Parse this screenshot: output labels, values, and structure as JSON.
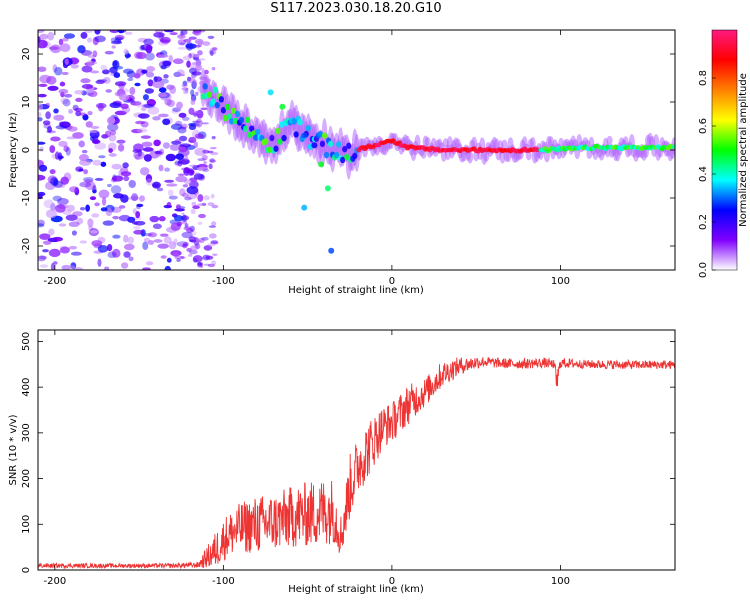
{
  "title": "S117.2023.030.18.20.G10",
  "chart_data": [
    {
      "type": "heatmap",
      "title": "S117.2023.030.18.20.G10",
      "xlabel": "Height of straight line (km)",
      "ylabel": "Frequency (Hz)",
      "xlim": [
        -210,
        168
      ],
      "ylim": [
        -25,
        25
      ],
      "xticks": [
        -200,
        -100,
        0,
        100
      ],
      "yticks": [
        -20,
        -10,
        0,
        10,
        20
      ],
      "noise_region_km": [
        -210,
        -112
      ],
      "signal_track": [
        {
          "x": -112,
          "y": 13
        },
        {
          "x": -100,
          "y": 9
        },
        {
          "x": -90,
          "y": 6
        },
        {
          "x": -80,
          "y": 3
        },
        {
          "x": -70,
          "y": 1
        },
        {
          "x": -60,
          "y": 6
        },
        {
          "x": -50,
          "y": 3
        },
        {
          "x": -40,
          "y": 1
        },
        {
          "x": -30,
          "y": -1
        },
        {
          "x": -20,
          "y": 0
        },
        {
          "x": -10,
          "y": 1
        },
        {
          "x": 0,
          "y": 2
        },
        {
          "x": 10,
          "y": 0.5
        },
        {
          "x": 30,
          "y": 0
        },
        {
          "x": 60,
          "y": 0
        },
        {
          "x": 90,
          "y": 0
        },
        {
          "x": 120,
          "y": 0.5
        },
        {
          "x": 168,
          "y": 0.5
        }
      ],
      "colorbar": {
        "label": "Normalized spectral amplitude",
        "range": [
          0,
          1
        ],
        "ticks": [
          "0.0",
          "0.2",
          "0.4",
          "0.6",
          "0.8"
        ],
        "colors": [
          "#ffffff",
          "#8000ff",
          "#0000ff",
          "#00ffff",
          "#00ff00",
          "#ffff00",
          "#ff8000",
          "#ff0000",
          "#ff1a80"
        ]
      }
    },
    {
      "type": "line",
      "xlabel": "Height of straight line (km)",
      "ylabel": "SNR (10 * v/v)",
      "xlim": [
        -210,
        168
      ],
      "ylim": [
        0,
        525
      ],
      "xticks": [
        -200,
        -100,
        0,
        100
      ],
      "yticks": [
        0,
        100,
        200,
        300,
        400,
        500
      ],
      "color": "#ee3333",
      "series": [
        {
          "name": "SNR",
          "x": [
            -210,
            -190,
            -170,
            -150,
            -130,
            -115,
            -105,
            -98,
            -90,
            -80,
            -70,
            -60,
            -50,
            -40,
            -35,
            -30,
            -25,
            -20,
            -15,
            -10,
            -5,
            0,
            5,
            10,
            15,
            20,
            25,
            30,
            35,
            40,
            45,
            50,
            55,
            60,
            70,
            80,
            90,
            96,
            98,
            100,
            110,
            120,
            140,
            168
          ],
          "y": [
            8,
            8,
            8,
            8,
            8,
            9,
            30,
            60,
            75,
            80,
            85,
            95,
            100,
            105,
            110,
            60,
            160,
            210,
            240,
            270,
            300,
            310,
            330,
            350,
            365,
            380,
            400,
            420,
            430,
            440,
            445,
            450,
            452,
            450,
            448,
            448,
            450,
            447,
            400,
            450,
            448,
            447,
            446,
            446
          ],
          "noise_amplitude": [
            6,
            6,
            6,
            6,
            6,
            8,
            50,
            60,
            70,
            80,
            80,
            85,
            90,
            95,
            90,
            60,
            90,
            80,
            80,
            70,
            60,
            55,
            55,
            55,
            45,
            40,
            40,
            35,
            30,
            25,
            20,
            18,
            15,
            14,
            14,
            14,
            14,
            12,
            40,
            14,
            12,
            12,
            12,
            12
          ]
        }
      ]
    }
  ]
}
